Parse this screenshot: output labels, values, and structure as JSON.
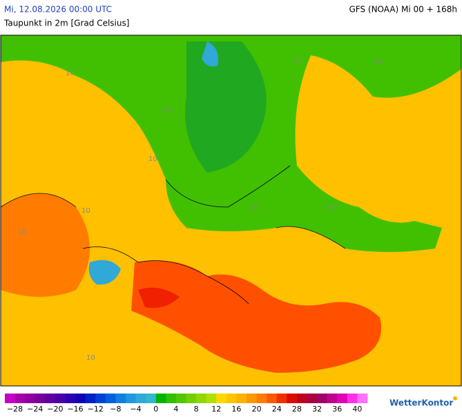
{
  "header": {
    "datetime": "Mi, 12.08.2026 00:00 UTC",
    "title": "Taupunkt in 2m [Grad Celsius]",
    "model": "GFS (NOAA) Mi 00 + 168h"
  },
  "map": {
    "contour_labels": [
      "10",
      "10",
      "10",
      "10",
      "10",
      "10",
      "10",
      "10",
      "10",
      "10"
    ]
  },
  "colorbar": {
    "bounds": [
      -30,
      42
    ],
    "ticks": [
      {
        "value": -28,
        "label": "−28"
      },
      {
        "value": -24,
        "label": "−24"
      },
      {
        "value": -20,
        "label": "−20"
      },
      {
        "value": -16,
        "label": "−16"
      },
      {
        "value": -12,
        "label": "−12"
      },
      {
        "value": -8,
        "label": "−8"
      },
      {
        "value": -4,
        "label": "−4"
      },
      0,
      4,
      8,
      12,
      16,
      20,
      24,
      28,
      32,
      36,
      40
    ],
    "colors": [
      "#c400c4",
      "#a800a8",
      "#9000a0",
      "#78009c",
      "#6000a0",
      "#4800a8",
      "#2c00b0",
      "#1000b8",
      "#0020c8",
      "#0040d8",
      "#0060e0",
      "#1080e0",
      "#2098e0",
      "#30a8d8",
      "#30b8d0",
      "#00b400",
      "#30c000",
      "#50c800",
      "#70d000",
      "#90d800",
      "#b0e000",
      "#ffd800",
      "#ffc400",
      "#ffb000",
      "#ff9800",
      "#ff7c00",
      "#ff5800",
      "#f03000",
      "#dc0a00",
      "#c00020",
      "#a80040",
      "#a00068",
      "#c00090",
      "#e000b8",
      "#ff30e8",
      "#ff70ff"
    ]
  },
  "brand": "WetterKontor"
}
